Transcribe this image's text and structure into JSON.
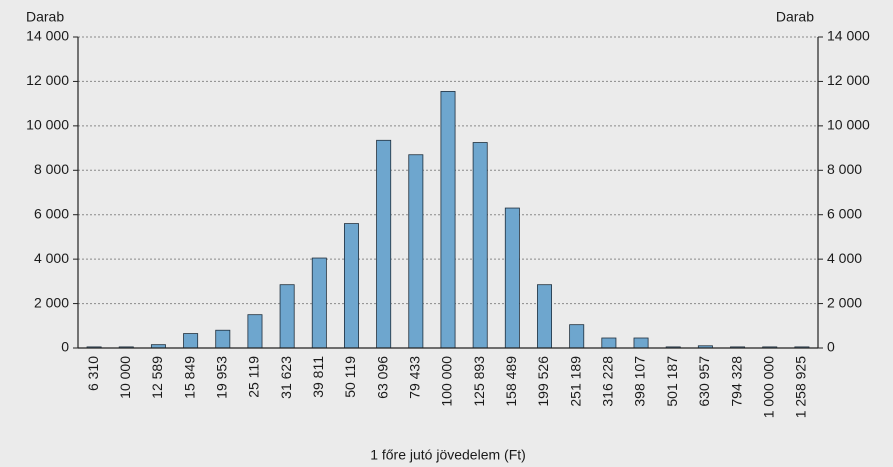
{
  "chart_data": {
    "type": "bar",
    "y_label": "Darab",
    "y2_label": "Darab",
    "x_label": "1 főre jutó jövedelem (Ft)",
    "categories": [
      "6 310",
      "10 000",
      "12 589",
      "15 849",
      "19 953",
      "25 119",
      "31 623",
      "39 811",
      "50 119",
      "63 096",
      "79 433",
      "100 000",
      "125 893",
      "158 489",
      "199 526",
      "251 189",
      "316 228",
      "398 107",
      "501 187",
      "630 957",
      "794 328",
      "1 000 000",
      "1 258 925"
    ],
    "values": [
      50,
      50,
      150,
      650,
      800,
      1500,
      2850,
      4050,
      5600,
      9350,
      8700,
      11550,
      9250,
      6300,
      2850,
      1050,
      450,
      450,
      50,
      100,
      50,
      50,
      50
    ],
    "color": "#6ea6ce",
    "ylim": [
      0,
      14000
    ],
    "yticks": [
      0,
      {
        "value": 2000,
        "label": "2 000"
      },
      {
        "value": 4000,
        "label": "4 000"
      },
      {
        "value": 6000,
        "label": "6 000"
      },
      {
        "value": 8000,
        "label": "8 000"
      },
      {
        "value": 10000,
        "label": "10 000"
      },
      {
        "value": 12000,
        "label": "12 000"
      },
      {
        "value": 14000,
        "label": "14 000"
      }
    ],
    "y2lim": [
      0,
      14000
    ],
    "y2ticks": [
      0,
      {
        "value": 2000,
        "label": "2 000"
      },
      {
        "value": 4000,
        "label": "4 000"
      },
      {
        "value": 6000,
        "label": "6 000"
      },
      {
        "value": 8000,
        "label": "8 000"
      },
      {
        "value": 10000,
        "label": "10 000"
      },
      {
        "value": 12000,
        "label": "12 000"
      },
      {
        "value": 14000,
        "label": "14 000"
      }
    ],
    "grid": true
  }
}
